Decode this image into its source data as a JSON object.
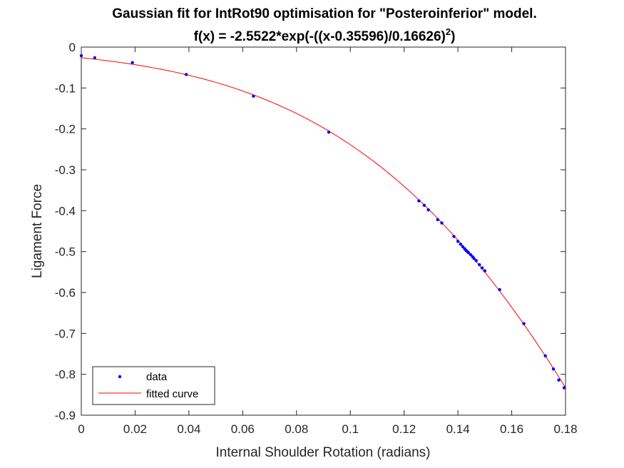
{
  "chart_data": {
    "type": "scatter",
    "title_line1": "Gaussian fit for IntRot90 optimisation for \"Posteroinferior\" model.",
    "title_line2_prefix": "f(x) = -2.5522*exp(-((x-0.35596)/0.16626)",
    "title_line2_exponent": "2",
    "title_line2_suffix": ")",
    "xlabel": "Internal Shoulder Rotation (radians)",
    "ylabel": "Ligament Force",
    "xlim": [
      0,
      0.18
    ],
    "ylim": [
      -0.9,
      0
    ],
    "xticks": [
      0,
      0.02,
      0.04,
      0.06,
      0.08,
      0.1,
      0.12,
      0.14,
      0.16,
      0.18
    ],
    "xtick_labels": [
      "0",
      "0.02",
      "0.04",
      "0.06",
      "0.08",
      "0.1",
      "0.12",
      "0.14",
      "0.16",
      "0.18"
    ],
    "yticks": [
      0,
      -0.1,
      -0.2,
      -0.3,
      -0.4,
      -0.5,
      -0.6,
      -0.7,
      -0.8,
      -0.9
    ],
    "ytick_labels": [
      "0",
      "-0.1",
      "-0.2",
      "-0.3",
      "-0.4",
      "-0.5",
      "-0.6",
      "-0.7",
      "-0.8",
      "-0.9"
    ],
    "grid": false,
    "legend_position": "bottom-left",
    "series": [
      {
        "name": "data",
        "kind": "points",
        "color": "#0000ff",
        "x": [
          0.0,
          0.005,
          0.019,
          0.039,
          0.064,
          0.092,
          0.1255,
          0.1275,
          0.129,
          0.1325,
          0.134,
          0.1385,
          0.14,
          0.141,
          0.1418,
          0.1425,
          0.143,
          0.1435,
          0.144,
          0.1448,
          0.1455,
          0.146,
          0.1468,
          0.148,
          0.149,
          0.15,
          0.1555,
          0.1645,
          0.1725,
          0.1755,
          0.1775,
          0.1795
        ],
        "y": [
          -0.021,
          -0.026,
          -0.038,
          -0.067,
          -0.12,
          -0.208,
          -0.376,
          -0.387,
          -0.398,
          -0.422,
          -0.43,
          -0.463,
          -0.475,
          -0.482,
          -0.488,
          -0.493,
          -0.497,
          -0.5,
          -0.503,
          -0.508,
          -0.513,
          -0.517,
          -0.522,
          -0.532,
          -0.54,
          -0.547,
          -0.593,
          -0.676,
          -0.755,
          -0.787,
          -0.814,
          -0.833
        ]
      },
      {
        "name": "fitted curve",
        "kind": "function",
        "color": "#ff0000",
        "amplitude": -2.5522,
        "center": 0.35596,
        "width": 0.16626
      }
    ]
  }
}
